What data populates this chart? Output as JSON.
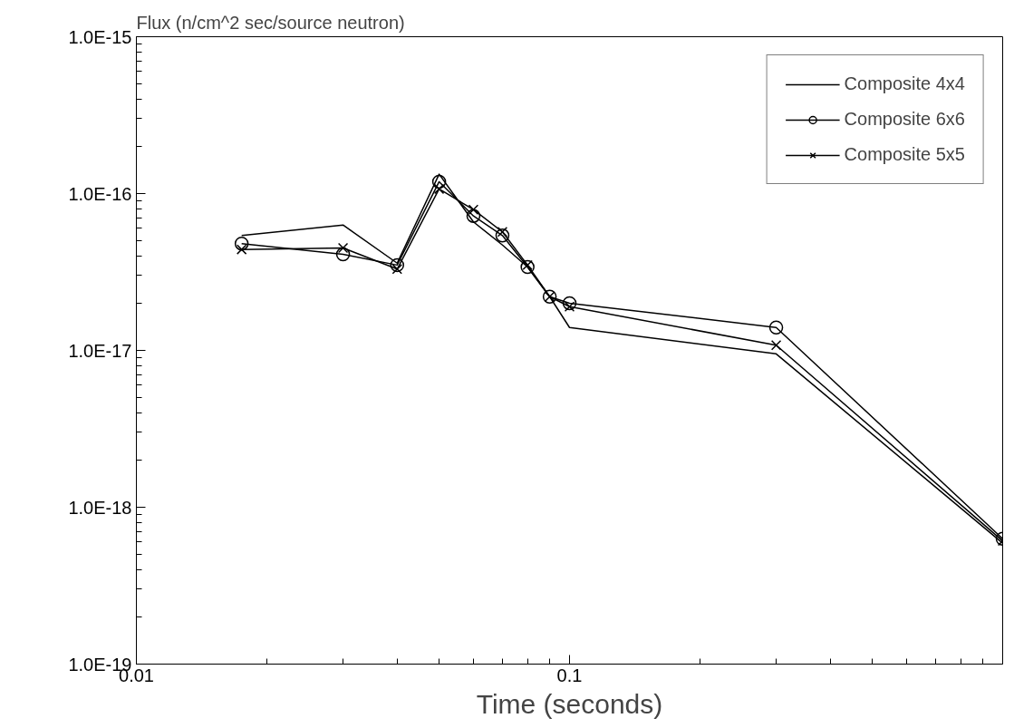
{
  "chart_data": {
    "type": "line",
    "ylabel": "Flux (n/cm^2 sec/source neutron)",
    "xlabel": "Time (seconds)",
    "x": [
      0.0175,
      0.03,
      0.04,
      0.05,
      0.06,
      0.07,
      0.08,
      0.09,
      0.1,
      0.3,
      1.0
    ],
    "series": [
      {
        "name": "Composite 4x4",
        "color": "#000000",
        "marker": "none",
        "values": [
          5.4e-17,
          6.3e-17,
          3.6e-17,
          1.33e-16,
          6.6e-17,
          4.7e-17,
          3.4e-17,
          2.2e-17,
          1.4e-17,
          9.5e-18,
          5.9e-19
        ]
      },
      {
        "name": "Composite 6x6",
        "color": "#000000",
        "marker": "circle",
        "values": [
          4.8e-17,
          4.1e-17,
          3.5e-17,
          1.19e-16,
          7.2e-17,
          5.4e-17,
          3.4e-17,
          2.2e-17,
          2e-17,
          1.4e-17,
          6.3e-19
        ]
      },
      {
        "name": "Composite 5x5",
        "color": "#000000",
        "marker": "cross",
        "values": [
          4.4e-17,
          4.5e-17,
          3.3e-17,
          1.07e-16,
          7.9e-17,
          5.7e-17,
          3.5e-17,
          2.2e-17,
          1.9e-17,
          1.08e-17,
          6.1e-19
        ]
      }
    ],
    "log": "xy",
    "grid": false,
    "legend": "top right",
    "xlim": [
      0.01,
      1.0
    ],
    "ylim": [
      1e-19,
      1e-15
    ],
    "xticks": [
      0.01,
      {
        "value": 0.02,
        "label": null
      },
      {
        "value": 0.03,
        "label": null
      },
      {
        "value": 0.04,
        "label": null
      },
      {
        "value": 0.05,
        "label": null
      },
      {
        "value": 0.06,
        "label": null
      },
      {
        "value": 0.07,
        "label": null
      },
      {
        "value": 0.08,
        "label": null
      },
      {
        "value": 0.09,
        "label": null
      },
      0.1,
      {
        "value": 0.2,
        "label": null
      },
      {
        "value": 0.3,
        "label": null
      },
      {
        "value": 0.4,
        "label": null
      },
      {
        "value": 0.5,
        "label": null
      },
      {
        "value": 0.6,
        "label": null
      },
      {
        "value": 0.7,
        "label": null
      },
      {
        "value": 0.8,
        "label": null
      },
      {
        "value": 0.9,
        "label": null
      }
    ],
    "yticks": [
      {
        "value": 1e-19,
        "label": "1.0E-19"
      },
      {
        "value": 1e-18,
        "label": "1.0E-18"
      },
      {
        "value": 1e-17,
        "label": "1.0E-17"
      },
      {
        "value": 1e-16,
        "label": "1.0E-16"
      },
      {
        "value": 1e-15,
        "label": "1.0E-15"
      },
      {
        "value": 2e-19,
        "label": null
      },
      {
        "value": 3e-19,
        "label": null
      },
      {
        "value": 4e-19,
        "label": null
      },
      {
        "value": 5e-19,
        "label": null
      },
      {
        "value": 6e-19,
        "label": null
      },
      {
        "value": 7e-19,
        "label": null
      },
      {
        "value": 8e-19,
        "label": null
      },
      {
        "value": 9e-19,
        "label": null
      },
      {
        "value": 2e-18,
        "label": null
      },
      {
        "value": 3e-18,
        "label": null
      },
      {
        "value": 4e-18,
        "label": null
      },
      {
        "value": 5e-18,
        "label": null
      },
      {
        "value": 6e-18,
        "label": null
      },
      {
        "value": 7e-18,
        "label": null
      },
      {
        "value": 8e-18,
        "label": null
      },
      {
        "value": 9e-18,
        "label": null
      },
      {
        "value": 2e-17,
        "label": null
      },
      {
        "value": 3e-17,
        "label": null
      },
      {
        "value": 4e-17,
        "label": null
      },
      {
        "value": 5e-17,
        "label": null
      },
      {
        "value": 6e-17,
        "label": null
      },
      {
        "value": 7e-17,
        "label": null
      },
      {
        "value": 8e-17,
        "label": null
      },
      {
        "value": 9e-17,
        "label": null
      },
      {
        "value": 2e-16,
        "label": null
      },
      {
        "value": 3e-16,
        "label": null
      },
      {
        "value": 4e-16,
        "label": null
      },
      {
        "value": 5e-16,
        "label": null
      },
      {
        "value": 6e-16,
        "label": null
      },
      {
        "value": 7e-16,
        "label": null
      },
      {
        "value": 8e-16,
        "label": null
      },
      {
        "value": 9e-16,
        "label": null
      }
    ]
  }
}
